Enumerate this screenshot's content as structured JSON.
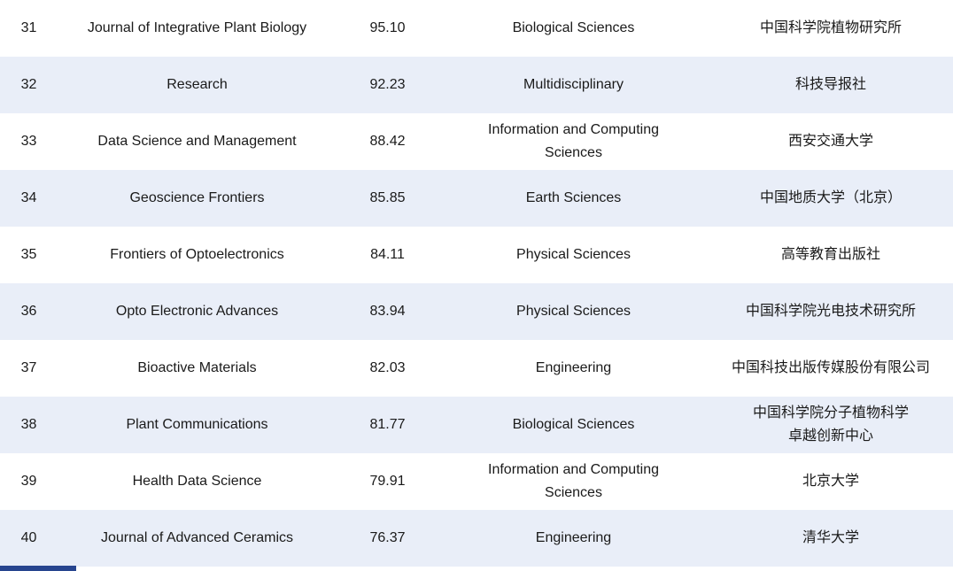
{
  "table": {
    "rows": [
      {
        "rank": "31",
        "journal": "Journal of Integrative Plant Biology",
        "score": "95.10",
        "category": "Biological Sciences",
        "publisher": "中国科学院植物研究所"
      },
      {
        "rank": "32",
        "journal": "Research",
        "score": "92.23",
        "category": "Multidisciplinary",
        "publisher": "科技导报社"
      },
      {
        "rank": "33",
        "journal": "Data Science and Management",
        "score": "88.42",
        "category": "Information and Computing Sciences",
        "publisher": "西安交通大学"
      },
      {
        "rank": "34",
        "journal": "Geoscience Frontiers",
        "score": "85.85",
        "category": "Earth Sciences",
        "publisher": "中国地质大学（北京）"
      },
      {
        "rank": "35",
        "journal": "Frontiers of Optoelectronics",
        "score": "84.11",
        "category": "Physical Sciences",
        "publisher": "高等教育出版社"
      },
      {
        "rank": "36",
        "journal": "Opto Electronic Advances",
        "score": "83.94",
        "category": "Physical Sciences",
        "publisher": "中国科学院光电技术研究所"
      },
      {
        "rank": "37",
        "journal": "Bioactive Materials",
        "score": "82.03",
        "category": "Engineering",
        "publisher": "中国科技出版传媒股份有限公司"
      },
      {
        "rank": "38",
        "journal": "Plant Communications",
        "score": "81.77",
        "category": "Biological Sciences",
        "publisher": "中国科学院分子植物科学",
        "publisher2": "卓越创新中心"
      },
      {
        "rank": "39",
        "journal": "Health Data Science",
        "score": "79.91",
        "category": "Information and Computing Sciences",
        "publisher": "北京大学"
      },
      {
        "rank": "40",
        "journal": "Journal of Advanced Ceramics",
        "score": "76.37",
        "category": "Engineering",
        "publisher": "清华大学"
      }
    ],
    "colors": {
      "row_alt_background": "#e9eef8",
      "row_background": "#ffffff",
      "text": "#1a1a1a",
      "cropped_bar": "#27458f"
    }
  }
}
